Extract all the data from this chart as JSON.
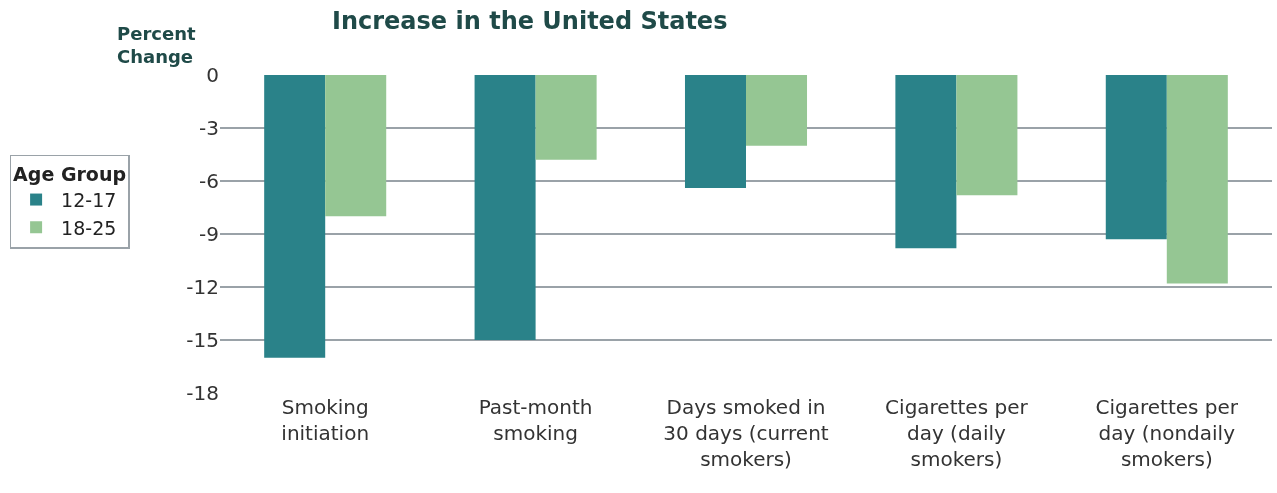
{
  "chart_data": {
    "type": "bar",
    "title": "Increase in the United States",
    "ylabel": "Percent\nChange",
    "legend_title": "Age Group",
    "categories": [
      "Smoking initiation",
      "Past-month smoking",
      "Days smoked in 30 days (current smokers)",
      "Cigarettes per day (daily smokers)",
      "Cigarettes per day (nondaily smokers)"
    ],
    "series": [
      {
        "name": "12-17",
        "color": "#2a8289",
        "values": [
          -16,
          -15,
          -6.4,
          -9.8,
          -9.3
        ]
      },
      {
        "name": "18-25",
        "color": "#95c693",
        "values": [
          -8,
          -4.8,
          -4.0,
          -6.8,
          -11.8
        ]
      }
    ],
    "ylim": [
      -18,
      0
    ],
    "yticks": [
      0,
      -3,
      -6,
      -9,
      -12,
      -15,
      -18
    ],
    "grid": "y",
    "legend": "left"
  }
}
